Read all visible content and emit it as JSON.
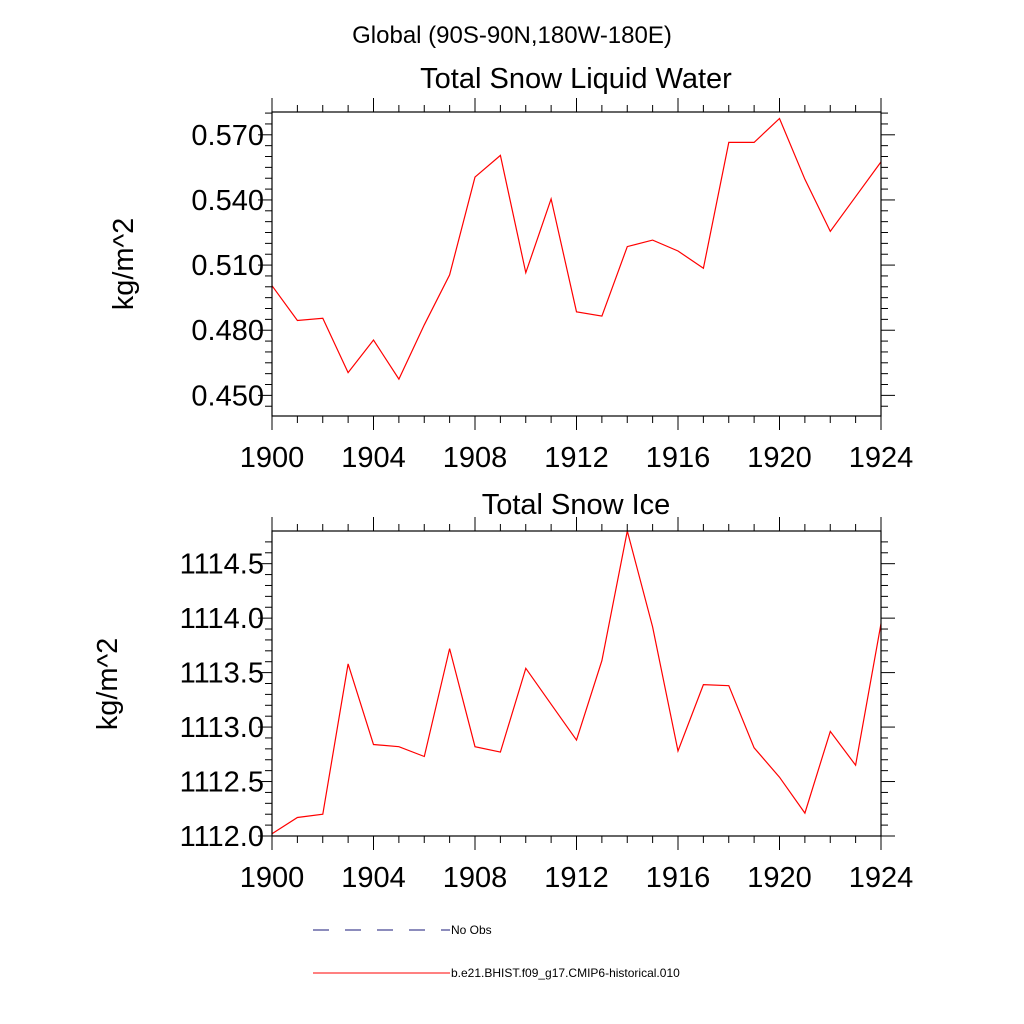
{
  "figure": {
    "suptitle": "Global (90S-90N,180W-180E)",
    "colors": {
      "obs": "#1a1a7a",
      "model": "#ff0000",
      "axis": "#000000"
    }
  },
  "chart_data": [
    {
      "type": "line",
      "title": "Total Snow Liquid Water",
      "ylabel": "kg/m^2",
      "xlabel": "",
      "xlim": [
        1900,
        1924
      ],
      "ylim": [
        0.4405,
        0.5805
      ],
      "xticks": [
        "1900",
        "1904",
        "1908",
        "1912",
        "1916",
        "1920",
        "1924"
      ],
      "yticks": [
        "0.450",
        "0.480",
        "0.510",
        "0.540",
        "0.570"
      ],
      "grid": false,
      "series": [
        {
          "name": "b.e21.BHIST.f09_g17.CMIP6-historical.010",
          "x": [
            1900,
            1901,
            1902,
            1903,
            1904,
            1905,
            1906,
            1907,
            1908,
            1909,
            1910,
            1911,
            1912,
            1913,
            1914,
            1915,
            1916,
            1917,
            1918,
            1919,
            1920,
            1921,
            1922,
            1923,
            1924
          ],
          "values": [
            0.5005,
            0.4845,
            0.4855,
            0.4605,
            0.4755,
            0.4575,
            0.4825,
            0.5055,
            0.5505,
            0.5605,
            0.5065,
            0.5405,
            0.4885,
            0.4865,
            0.5185,
            0.5215,
            0.5165,
            0.5085,
            0.5665,
            0.5665,
            0.5775,
            0.5495,
            0.5255,
            0.5415,
            0.5575
          ]
        }
      ]
    },
    {
      "type": "line",
      "title": "Total Snow Ice",
      "ylabel": "kg/m^2",
      "xlabel": "",
      "xlim": [
        1900,
        1924
      ],
      "ylim": [
        1112.0,
        1114.8
      ],
      "xticks": [
        "1900",
        "1904",
        "1908",
        "1912",
        "1916",
        "1920",
        "1924"
      ],
      "yticks": [
        "1112.0",
        "1112.5",
        "1113.0",
        "1113.5",
        "1114.0",
        "1114.5"
      ],
      "grid": false,
      "series": [
        {
          "name": "b.e21.BHIST.f09_g17.CMIP6-historical.010",
          "x": [
            1900,
            1901,
            1902,
            1903,
            1904,
            1905,
            1906,
            1907,
            1908,
            1909,
            1910,
            1911,
            1912,
            1913,
            1914,
            1915,
            1916,
            1917,
            1918,
            1919,
            1920,
            1921,
            1922,
            1923,
            1924
          ],
          "values": [
            1112.02,
            1112.17,
            1112.2,
            1113.58,
            1112.84,
            1112.82,
            1112.73,
            1113.72,
            1112.82,
            1112.77,
            1113.54,
            1113.21,
            1112.88,
            1113.61,
            1114.8,
            1113.92,
            1112.78,
            1113.39,
            1113.38,
            1112.81,
            1112.54,
            1112.21,
            1112.96,
            1112.65,
            1113.95
          ]
        }
      ]
    }
  ],
  "legend": {
    "position": "bottom",
    "entries": [
      {
        "label": "No Obs",
        "style": "dashed",
        "color": "#1a1a7a"
      },
      {
        "label": "b.e21.BHIST.f09_g17.CMIP6-historical.010",
        "style": "solid",
        "color": "#ff0000"
      }
    ]
  }
}
